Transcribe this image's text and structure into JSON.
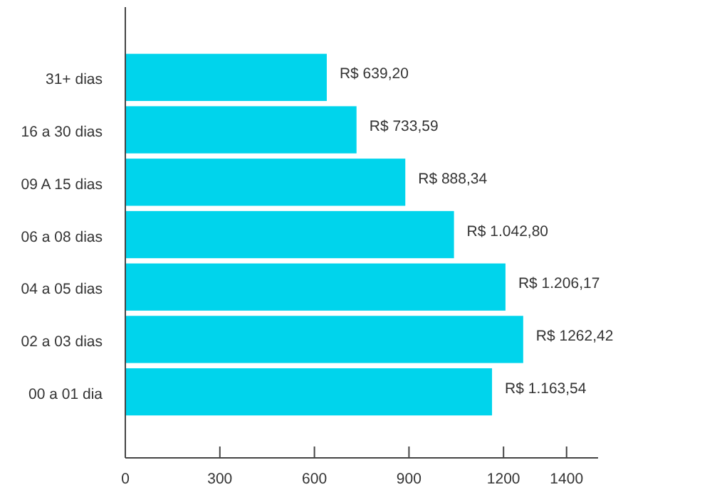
{
  "chart_data": {
    "type": "bar",
    "orientation": "horizontal",
    "categories": [
      "31+ dias",
      "16 a 30 dias",
      "09 A 15 dias",
      "06 a 08 dias",
      "04 a 05 dias",
      "02 a 03 dias",
      "00 a 01 dia"
    ],
    "values": [
      639.2,
      733.59,
      888.34,
      1042.8,
      1206.17,
      1262.42,
      1163.54
    ],
    "value_labels": [
      "R$ 639,20",
      "R$ 733,59",
      "R$ 888,34",
      "R$ 1.042,80",
      "R$ 1.206,17",
      "R$ 1262,42",
      "R$ 1.163,54"
    ],
    "color": "#00d4ec",
    "xlim": [
      0,
      1500
    ],
    "xticks": [
      0,
      300,
      600,
      900,
      1200,
      1400
    ],
    "grid": false
  }
}
